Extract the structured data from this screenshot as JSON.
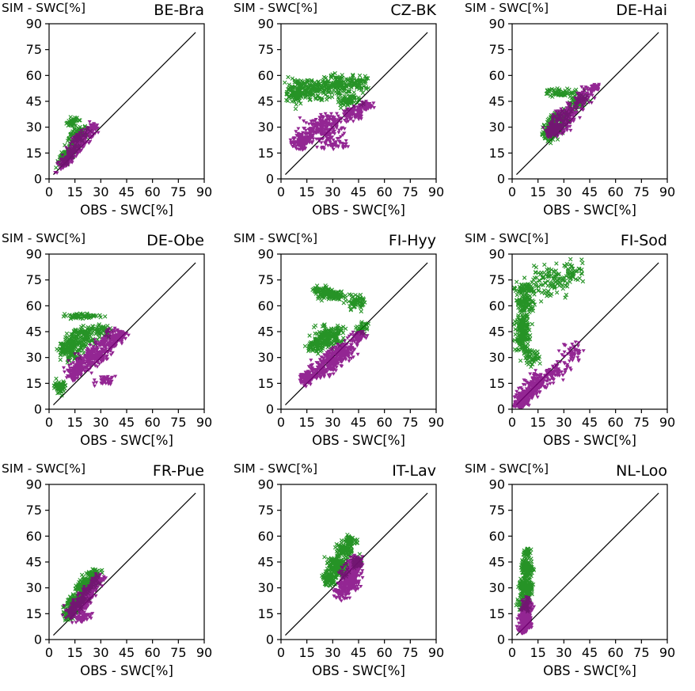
{
  "figure": {
    "xlabel": "OBS - SWC[%]",
    "ylabel": "SIM - SWC[%]",
    "ticks": [
      0,
      15,
      30,
      45,
      60,
      75,
      90
    ],
    "xlim": [
      0,
      90
    ],
    "ylim": [
      0,
      90
    ],
    "background": "#ffffff",
    "axis_color": "#000000",
    "diagonal_line_color": "#000000",
    "cluster_format": "cx,cy,rx,ry,n,rot_deg",
    "marker_colors": {
      "green_x": "#008000",
      "purple_triangle": "#800080"
    }
  },
  "chart_data": [
    {
      "type": "scatter",
      "title": "BE-Bra",
      "xlabel": "OBS - SWC[%]",
      "ylabel": "SIM - SWC[%]",
      "xlim": [
        0,
        90
      ],
      "ylim": [
        0,
        90
      ],
      "grid": false,
      "diagonal_line": [
        0,
        90
      ],
      "series": [
        {
          "name": "green-x",
          "marker": "x",
          "color": "#008000",
          "clusters": [
            [
              11,
              14,
              8,
              3,
              120,
              45
            ],
            [
              17,
              25,
              7,
              4,
              110,
              40
            ],
            [
              14,
              33,
              3.5,
              2.5,
              40,
              20
            ]
          ]
        },
        {
          "name": "purple-triangle",
          "marker": "triangle-down",
          "color": "#800080",
          "clusters": [
            [
              11,
              12,
              8,
              3,
              140,
              45
            ],
            [
              18,
              22,
              8,
              4,
              150,
              40
            ],
            [
              25,
              29,
              4,
              2.5,
              50,
              35
            ]
          ]
        }
      ]
    },
    {
      "type": "scatter",
      "title": "CZ-BK",
      "xlabel": "OBS - SWC[%]",
      "ylabel": "SIM - SWC[%]",
      "xlim": [
        0,
        90
      ],
      "ylim": [
        0,
        90
      ],
      "grid": false,
      "diagonal_line": [
        0,
        90
      ],
      "series": [
        {
          "name": "green-x",
          "marker": "x",
          "color": "#008000",
          "clusters": [
            [
              15,
              52,
              11,
              6,
              200,
              0
            ],
            [
              32,
              55,
              11,
              5,
              130,
              0
            ],
            [
              40,
              46,
              8,
              4,
              70,
              0
            ],
            [
              8,
              48,
              4,
              5,
              50,
              0
            ],
            [
              45,
              55,
              6,
              4,
              50,
              0
            ]
          ]
        },
        {
          "name": "purple-triangle",
          "marker": "triangle-down",
          "color": "#800080",
          "clusters": [
            [
              12,
              22,
              6,
              4,
              140,
              20
            ],
            [
              25,
              30,
              12,
              7,
              220,
              15
            ],
            [
              42,
              38,
              6,
              4,
              90,
              10
            ],
            [
              30,
              20,
              8,
              3,
              50,
              5
            ],
            [
              48,
              42,
              5,
              3,
              50,
              10
            ]
          ]
        }
      ]
    },
    {
      "type": "scatter",
      "title": "DE-Hai",
      "xlabel": "OBS - SWC[%]",
      "ylabel": "SIM - SWC[%]",
      "xlim": [
        0,
        90
      ],
      "ylim": [
        0,
        90
      ],
      "grid": false,
      "diagonal_line": [
        0,
        90
      ],
      "series": [
        {
          "name": "green-x",
          "marker": "x",
          "color": "#008000",
          "clusters": [
            [
              26,
              33,
              9,
              5,
              180,
              45
            ],
            [
              22,
              27,
              5,
              4,
              90,
              40
            ],
            [
              28,
              50,
              9,
              2,
              60,
              0
            ],
            [
              38,
              45,
              6,
              4,
              70,
              40
            ]
          ]
        },
        {
          "name": "purple-triangle",
          "marker": "triangle-down",
          "color": "#800080",
          "clusters": [
            [
              30,
              35,
              10,
              5,
              220,
              45
            ],
            [
              24,
              28,
              5,
              4,
              110,
              40
            ],
            [
              42,
              48,
              5,
              4,
              90,
              40
            ],
            [
              48,
              53,
              2.5,
              2.5,
              30,
              0
            ]
          ]
        }
      ]
    },
    {
      "type": "scatter",
      "title": "DE-Obe",
      "xlabel": "OBS - SWC[%]",
      "ylabel": "SIM - SWC[%]",
      "xlim": [
        0,
        90
      ],
      "ylim": [
        0,
        90
      ],
      "grid": false,
      "diagonal_line": [
        0,
        90
      ],
      "series": [
        {
          "name": "green-x",
          "marker": "x",
          "color": "#008000",
          "clusters": [
            [
              12,
              35,
              6,
              6,
              140,
              0
            ],
            [
              20,
              42,
              8,
              6,
              130,
              10
            ],
            [
              20,
              54,
              11,
              1.5,
              60,
              0
            ],
            [
              6,
              13,
              3,
              3.5,
              60,
              0
            ],
            [
              30,
              46,
              6,
              4,
              50,
              0
            ]
          ]
        },
        {
          "name": "purple-triangle",
          "marker": "triangle-down",
          "color": "#800080",
          "clusters": [
            [
              25,
              30,
              11,
              6,
              250,
              35
            ],
            [
              35,
              40,
              8,
              5,
              130,
              35
            ],
            [
              15,
              22,
              5,
              4,
              110,
              30
            ],
            [
              33,
              17,
              6,
              3,
              40,
              0
            ],
            [
              42,
              42,
              4,
              3,
              50,
              30
            ]
          ]
        }
      ]
    },
    {
      "type": "scatter",
      "title": "FI-Hyy",
      "xlabel": "OBS - SWC[%]",
      "ylabel": "SIM - SWC[%]",
      "xlim": [
        0,
        90
      ],
      "ylim": [
        0,
        90
      ],
      "grid": false,
      "diagonal_line": [
        0,
        90
      ],
      "series": [
        {
          "name": "green-x",
          "marker": "x",
          "color": "#008000",
          "clusters": [
            [
              28,
              42,
              8,
              6,
              170,
              10
            ],
            [
              30,
              66,
              9,
              3,
              90,
              0
            ],
            [
              25,
              69,
              7,
              2,
              50,
              0
            ],
            [
              44,
              62,
              5,
              4,
              60,
              0
            ],
            [
              20,
              37,
              5,
              4,
              70,
              0
            ],
            [
              47,
              47,
              4,
              3,
              35,
              0
            ]
          ]
        },
        {
          "name": "purple-triangle",
          "marker": "triangle-down",
          "color": "#800080",
          "clusters": [
            [
              25,
              25,
              13,
              5,
              220,
              30
            ],
            [
              35,
              33,
              9,
              5,
              170,
              25
            ],
            [
              15,
              18,
              4,
              3,
              90,
              20
            ],
            [
              45,
              42,
              4,
              3,
              70,
              30
            ]
          ]
        }
      ]
    },
    {
      "type": "scatter",
      "title": "FI-Sod",
      "xlabel": "OBS - SWC[%]",
      "ylabel": "SIM - SWC[%]",
      "xlim": [
        0,
        90
      ],
      "ylim": [
        0,
        90
      ],
      "grid": false,
      "diagonal_line": [
        0,
        90
      ],
      "series": [
        {
          "name": "green-x",
          "marker": "x",
          "color": "#008000",
          "clusters": [
            [
              6,
              45,
              4,
              12,
              160,
              0
            ],
            [
              8,
              62,
              5,
              10,
              110,
              0
            ],
            [
              22,
              75,
              13,
              9,
              110,
              0
            ],
            [
              36,
              80,
              8,
              6,
              45,
              0
            ],
            [
              8,
              70,
              7,
              2,
              40,
              0
            ],
            [
              12,
              30,
              4,
              4,
              50,
              0
            ]
          ]
        },
        {
          "name": "purple-triangle",
          "marker": "triangle-down",
          "color": "#800080",
          "clusters": [
            [
              8,
              8,
              6,
              4,
              160,
              35
            ],
            [
              15,
              15,
              7,
              5,
              130,
              35
            ],
            [
              25,
              22,
              8,
              5,
              70,
              25
            ],
            [
              35,
              33,
              6,
              5,
              50,
              30
            ],
            [
              5,
              3,
              4,
              2,
              70,
              10
            ]
          ]
        }
      ]
    },
    {
      "type": "scatter",
      "title": "FR-Pue",
      "xlabel": "OBS - SWC[%]",
      "ylabel": "SIM - SWC[%]",
      "xlim": [
        0,
        90
      ],
      "ylim": [
        0,
        90
      ],
      "grid": false,
      "diagonal_line": [
        0,
        90
      ],
      "series": [
        {
          "name": "green-x",
          "marker": "x",
          "color": "#008000",
          "clusters": [
            [
              16,
              22,
              8,
              4,
              180,
              45
            ],
            [
              22,
              32,
              6,
              4,
              130,
              40
            ],
            [
              26,
              38,
              4,
              3,
              70,
              40
            ],
            [
              12,
              15,
              4,
              3,
              70,
              40
            ]
          ]
        },
        {
          "name": "purple-triangle",
          "marker": "triangle-down",
          "color": "#800080",
          "clusters": [
            [
              17,
              19,
              8,
              4,
              200,
              42
            ],
            [
              23,
              27,
              6,
              4,
              130,
              40
            ],
            [
              28,
              34,
              4,
              3,
              70,
              40
            ],
            [
              20,
              13,
              5,
              2,
              50,
              20
            ]
          ]
        }
      ]
    },
    {
      "type": "scatter",
      "title": "IT-Lav",
      "xlabel": "OBS - SWC[%]",
      "ylabel": "SIM - SWC[%]",
      "xlim": [
        0,
        90
      ],
      "ylim": [
        0,
        90
      ],
      "grid": false,
      "diagonal_line": [
        0,
        90
      ],
      "series": [
        {
          "name": "green-x",
          "marker": "x",
          "color": "#008000",
          "clusters": [
            [
              33,
              42,
              6,
              6,
              180,
              0
            ],
            [
              37,
              52,
              5,
              4,
              90,
              0
            ],
            [
              40,
              58,
              4,
              3,
              45,
              0
            ],
            [
              28,
              35,
              4,
              4,
              70,
              0
            ],
            [
              44,
              45,
              3,
              3,
              45,
              0
            ]
          ]
        },
        {
          "name": "purple-triangle",
          "marker": "triangle-down",
          "color": "#800080",
          "clusters": [
            [
              40,
              35,
              5,
              6,
              220,
              20
            ],
            [
              43,
              42,
              4,
              4,
              130,
              20
            ],
            [
              36,
              28,
              4,
              4,
              90,
              10
            ],
            [
              44,
              46,
              3,
              3,
              70,
              0
            ]
          ]
        }
      ]
    },
    {
      "type": "scatter",
      "title": "NL-Loo",
      "xlabel": "OBS - SWC[%]",
      "ylabel": "SIM - SWC[%]",
      "xlim": [
        0,
        90
      ],
      "ylim": [
        0,
        90
      ],
      "grid": false,
      "diagonal_line": [
        0,
        90
      ],
      "series": [
        {
          "name": "green-x",
          "marker": "x",
          "color": "#008000",
          "clusters": [
            [
              8,
              30,
              3.5,
              7,
              180,
              0
            ],
            [
              9,
              42,
              3,
              5,
              90,
              0
            ],
            [
              9,
              50,
              2,
              3,
              35,
              0
            ],
            [
              7,
              20,
              3,
              3,
              70,
              0
            ]
          ]
        },
        {
          "name": "purple-triangle",
          "marker": "triangle-down",
          "color": "#800080",
          "clusters": [
            [
              8,
              12,
              3.5,
              6,
              220,
              0
            ],
            [
              9,
              20,
              3,
              4,
              110,
              0
            ],
            [
              6,
              6,
              3,
              2.5,
              70,
              0
            ]
          ]
        }
      ]
    }
  ]
}
